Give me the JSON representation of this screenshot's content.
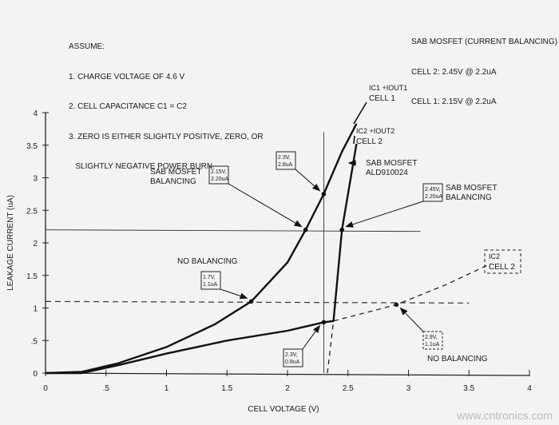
{
  "assumptions": {
    "title": "ASSUME:",
    "items": [
      "1. CHARGE VOLTAGE OF 4.6 V",
      "2. CELL CAPACITANCE C1 = C2",
      "3. ZERO IS EITHER SLIGHTLY POSITIVE, ZERO, OR",
      "   SLIGHTLY NEGATIVE POWER BURN."
    ]
  },
  "summary": {
    "title": "SAB MOSFET (CURRENT BALANCING)",
    "items": [
      "CELL 2: 2.45V @ 2.2uA",
      "CELL 1: 2.15V @ 2.2uA"
    ]
  },
  "watermark": "www.cntronics.com",
  "chart_data": {
    "type": "line",
    "xlabel": "CELL VOLTAGE (V)",
    "ylabel": "LEAKAGE CURRENT (uA)",
    "xlim": [
      0,
      4
    ],
    "ylim": [
      0,
      4
    ],
    "xticks": [
      "0",
      ".5",
      "1",
      "1.5",
      "2",
      "2.5",
      "3",
      "3.5",
      "4"
    ],
    "xtick_values": [
      0,
      0.5,
      1,
      1.5,
      2,
      2.5,
      3,
      3.5,
      4
    ],
    "yticks": [
      "0",
      ".5",
      "1",
      "1.5",
      "2",
      "2.5",
      "3",
      "3.5",
      "4"
    ],
    "ytick_values": [
      0,
      0.5,
      1,
      1.5,
      2,
      2.5,
      3,
      3.5,
      4
    ],
    "grid": false,
    "series": [
      {
        "name": "IC1 +IOUT1 CELL 1",
        "style": "solid",
        "x": [
          0,
          0.3,
          0.6,
          1.0,
          1.4,
          1.7,
          2.0,
          2.15,
          2.3,
          2.45,
          2.57
        ],
        "y": [
          0,
          0.02,
          0.15,
          0.4,
          0.75,
          1.1,
          1.7,
          2.2,
          2.75,
          3.4,
          3.83
        ]
      },
      {
        "name": "IC2 +IOUT2 CELL 2",
        "style": "solid",
        "x": [
          0,
          0.3,
          0.6,
          1.0,
          1.5,
          2.0,
          2.3,
          2.38,
          2.45,
          2.57
        ],
        "y": [
          0,
          0,
          0.12,
          0.3,
          0.5,
          0.65,
          0.78,
          0.8,
          2.2,
          3.52
        ]
      },
      {
        "name": "IC2 CELL 2",
        "style": "dashed",
        "x": [
          2.33,
          2.38,
          2.9,
          3.3,
          3.68
        ],
        "y": [
          0,
          0.8,
          1.05,
          1.35,
          1.68
        ]
      }
    ],
    "reference_lines": [
      {
        "orientation": "horizontal",
        "value": 1.1,
        "range": [
          0,
          3.5
        ],
        "style": "dashed"
      },
      {
        "orientation": "horizontal",
        "value": 2.2,
        "range": [
          0,
          3.1
        ],
        "style": "solid"
      },
      {
        "orientation": "vertical",
        "value": 2.3,
        "range": [
          0,
          3.7
        ],
        "style": "solid"
      }
    ],
    "annotations": [
      {
        "text": "SAB MOSFET\nBALANCING",
        "box": "2.15V,\n2.20uA",
        "x": 2.15,
        "y": 2.2
      },
      {
        "text": "",
        "box": "2.3V,\n2.8uA",
        "x": 2.3,
        "y": 2.75
      },
      {
        "text": "SAB MOSFET\nBALANCING",
        "box": "2.45V,\n2.20uA",
        "x": 2.45,
        "y": 2.2
      },
      {
        "text": "NO BALANCING",
        "box": "1.7V,\n1.1uA",
        "x": 1.7,
        "y": 1.1
      },
      {
        "text": "",
        "box": "2.3V,\n0.8uA",
        "x": 2.3,
        "y": 0.78
      },
      {
        "text": "NO BALANCING",
        "box": "2.9V,\n1.1uA",
        "x": 2.9,
        "y": 1.05
      },
      {
        "text": "SAB MOSFET\nALD910024",
        "box": "",
        "x": 2.5,
        "y": 3.2
      }
    ],
    "curve_labels": [
      {
        "line1": "IC1 +IOUT1",
        "line2": "CELL 1"
      },
      {
        "line1": "IC2 +IOUT2",
        "line2": "CELL 2"
      },
      {
        "line1": "IC2",
        "line2": "CELL 2"
      }
    ]
  }
}
